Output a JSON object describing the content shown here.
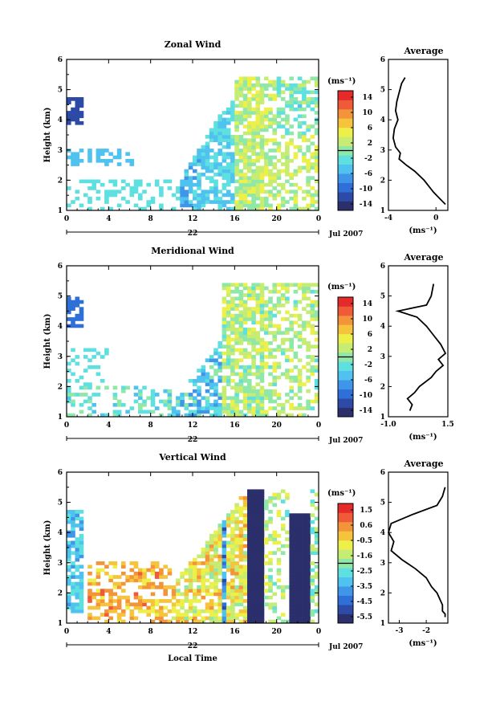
{
  "colors": {
    "scale": [
      "#2b2f6b",
      "#2c4aa6",
      "#2f6fd8",
      "#3f96e8",
      "#4fc2ef",
      "#5fe0e0",
      "#8fe8a8",
      "#c6ec74",
      "#eef04a",
      "#f6c43c",
      "#f4943a",
      "#ef5a38",
      "#e52a2a"
    ],
    "line": "#000000"
  },
  "chart_data": [
    {
      "type": "heatmap",
      "title": "Zonal Wind",
      "ylabel": "Height (km)",
      "ylim": [
        1,
        6
      ],
      "yticks": [
        "1",
        "2",
        "3",
        "4",
        "5",
        "6"
      ],
      "xlim": [
        0,
        24
      ],
      "xticks": [
        "0",
        "4",
        "8",
        "12",
        "16",
        "20",
        "0"
      ],
      "date_label": "22",
      "month_label": "Jul 2007",
      "colorbar": {
        "unit": "(ms⁻¹)",
        "min": -15,
        "max": 15,
        "ticks": [
          "14",
          "10",
          "6",
          "2",
          "-2",
          "-6",
          "-10",
          "-14"
        ]
      },
      "average": {
        "title": "Average",
        "xlabel": "(ms⁻¹)",
        "xlim": [
          -4,
          1
        ],
        "xticks": [
          "-4",
          "0"
        ],
        "x": [
          -2.6,
          -2.9,
          -3.1,
          -3.3,
          -3.4,
          -3.2,
          -3.5,
          -3.6,
          -3.4,
          -3.0,
          -3.1,
          -2.5,
          -1.8,
          -1.0,
          -0.6,
          -0.2,
          0.3,
          0.8
        ],
        "y": [
          5.4,
          5.2,
          4.9,
          4.6,
          4.3,
          4.0,
          3.7,
          3.4,
          3.1,
          2.9,
          2.7,
          2.5,
          2.3,
          2.0,
          1.8,
          1.6,
          1.4,
          1.2
        ]
      }
    },
    {
      "type": "heatmap",
      "title": "Meridional Wind",
      "ylabel": "Height (km)",
      "ylim": [
        1,
        6
      ],
      "yticks": [
        "1",
        "2",
        "3",
        "4",
        "5",
        "6"
      ],
      "xlim": [
        0,
        24
      ],
      "xticks": [
        "0",
        "4",
        "8",
        "12",
        "16",
        "20",
        "0"
      ],
      "date_label": "22",
      "month_label": "Jul 2007",
      "colorbar": {
        "unit": "(ms⁻¹)",
        "min": -15,
        "max": 15,
        "ticks": [
          "14",
          "10",
          "6",
          "2",
          "-2",
          "-6",
          "-10",
          "-14"
        ]
      },
      "average": {
        "title": "Average",
        "xlabel": "(ms⁻¹)",
        "xlim": [
          -1.0,
          1.5
        ],
        "xticks": [
          "-1.0",
          "1.5"
        ],
        "x": [
          0.9,
          0.8,
          0.6,
          -0.6,
          0.2,
          0.6,
          0.9,
          1.2,
          1.4,
          1.1,
          1.3,
          1.0,
          0.8,
          0.3,
          0.1,
          -0.2,
          0.0,
          -0.1
        ],
        "y": [
          5.4,
          5.0,
          4.7,
          4.5,
          4.3,
          4.0,
          3.7,
          3.4,
          3.1,
          2.9,
          2.7,
          2.5,
          2.3,
          2.0,
          1.8,
          1.6,
          1.4,
          1.2
        ]
      }
    },
    {
      "type": "heatmap",
      "title": "Vertical Wind",
      "ylabel": "Height (km)",
      "xlabel": "Local Time",
      "ylim": [
        1,
        6
      ],
      "yticks": [
        "1",
        "2",
        "3",
        "4",
        "5",
        "6"
      ],
      "xlim": [
        0,
        24
      ],
      "xticks": [
        "0",
        "4",
        "8",
        "12",
        "16",
        "20",
        "0"
      ],
      "date_label": "22",
      "month_label": "Jul 2007",
      "colorbar": {
        "unit": "(ms⁻¹)",
        "min": -6.0,
        "max": 2.0,
        "ticks": [
          "1.5",
          "0.6",
          "-0.5",
          "-1.6",
          "-2.5",
          "-3.5",
          "-4.5",
          "-5.5"
        ]
      },
      "average": {
        "title": "Average",
        "xlabel": "(ms⁻¹)",
        "xlim": [
          -3.4,
          -1.2
        ],
        "xticks": [
          "-3",
          "-2"
        ],
        "x": [
          -1.3,
          -1.4,
          -1.6,
          -2.5,
          -3.3,
          -3.4,
          -3.2,
          -3.3,
          -2.9,
          -2.4,
          -2.0,
          -1.8,
          -1.6,
          -1.5,
          -1.4,
          -1.4,
          -1.3,
          -1.3
        ],
        "y": [
          5.5,
          5.2,
          4.9,
          4.6,
          4.3,
          4.0,
          3.7,
          3.4,
          3.1,
          2.8,
          2.5,
          2.2,
          2.0,
          1.8,
          1.6,
          1.4,
          1.3,
          1.2
        ]
      }
    }
  ]
}
